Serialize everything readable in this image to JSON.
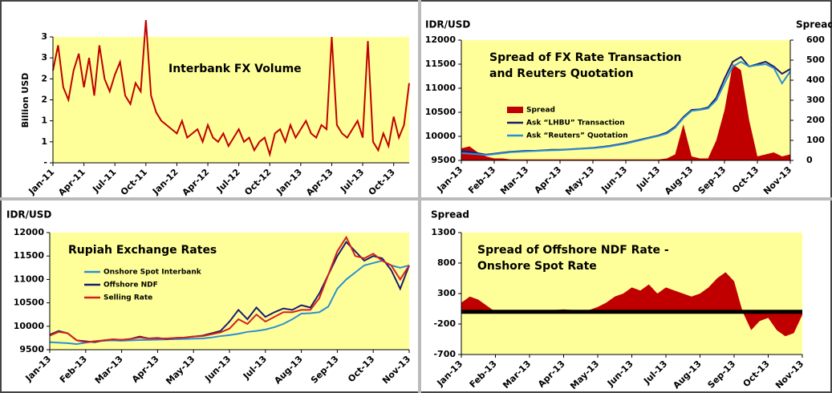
{
  "chart_data": [
    {
      "type": "line",
      "title": [
        "Interbank FX Volume"
      ],
      "ylabel": "Billion USD",
      "categories": [
        "Jan-11",
        null,
        null,
        null,
        null,
        null,
        "Apr-11",
        null,
        null,
        null,
        null,
        null,
        "Jul-11",
        null,
        null,
        null,
        null,
        null,
        "Oct-11",
        null,
        null,
        null,
        null,
        null,
        "Jan-12",
        null,
        null,
        null,
        null,
        null,
        "Apr-12",
        null,
        null,
        null,
        null,
        null,
        "Jul-12",
        null,
        null,
        null,
        null,
        null,
        "Oct-12",
        null,
        null,
        null,
        null,
        null,
        "Jan-13",
        null,
        null,
        null,
        null,
        null,
        "Apr-13",
        null,
        null,
        null,
        null,
        null,
        "Jul-13",
        null,
        null,
        null,
        null,
        null,
        "Oct-13",
        null,
        null,
        null
      ],
      "series": [
        {
          "color": "#c00000",
          "values": [
            2.2,
            2.8,
            1.8,
            1.5,
            2.2,
            2.6,
            1.8,
            2.5,
            1.6,
            2.8,
            2.0,
            1.7,
            2.1,
            2.4,
            1.6,
            1.4,
            1.9,
            1.7,
            3.4,
            1.6,
            1.2,
            1.0,
            0.9,
            0.8,
            0.7,
            1.0,
            0.6,
            0.7,
            0.8,
            0.5,
            0.9,
            0.6,
            0.5,
            0.7,
            0.4,
            0.6,
            0.8,
            0.5,
            0.6,
            0.3,
            0.5,
            0.6,
            0.2,
            0.7,
            0.8,
            0.5,
            0.9,
            0.6,
            0.8,
            1.0,
            0.7,
            0.6,
            0.9,
            0.8,
            3.0,
            0.9,
            0.7,
            0.6,
            0.8,
            1.0,
            0.6,
            2.9,
            0.5,
            0.3,
            0.7,
            0.4,
            1.1,
            0.6,
            0.9,
            1.9
          ]
        }
      ],
      "ylim": [
        0,
        3
      ],
      "yticks": [
        {
          "value": 0,
          "label": "-"
        },
        {
          "value": 0.5,
          "label": "1"
        },
        1,
        {
          "value": 1.5,
          "label": "2"
        },
        2,
        {
          "value": 2.5,
          "label": "3"
        },
        3
      ]
    },
    {
      "type": "line",
      "title": [
        "Spread of FX Rate Transaction",
        "and Reuters Quotation"
      ],
      "ylabel": "IDR/USD",
      "y2label": "Spread",
      "categories": [
        "Jan-13",
        null,
        null,
        null,
        "Feb-13",
        null,
        null,
        null,
        "Mar-13",
        null,
        null,
        null,
        "Apr-13",
        null,
        null,
        null,
        "May-13",
        null,
        null,
        null,
        "Jun-13",
        null,
        null,
        null,
        "Jul-13",
        null,
        null,
        null,
        "Aug-13",
        null,
        null,
        null,
        "Sep-13",
        null,
        null,
        null,
        "Oct-13",
        null,
        null,
        null,
        "Nov-13"
      ],
      "series": [
        {
          "name": "Spread",
          "color": "#c00000",
          "style": "area",
          "axis": "y2",
          "values": [
            60,
            70,
            40,
            20,
            10,
            10,
            5,
            5,
            5,
            5,
            5,
            5,
            5,
            5,
            5,
            5,
            5,
            5,
            5,
            5,
            5,
            5,
            5,
            5,
            5,
            10,
            30,
            180,
            20,
            10,
            10,
            100,
            250,
            480,
            450,
            200,
            20,
            30,
            40,
            20,
            30
          ]
        },
        {
          "name": "Ask  “LHBU” Transaction",
          "color": "#1c1c6e",
          "values": [
            9700,
            9680,
            9650,
            9620,
            9640,
            9660,
            9680,
            9690,
            9700,
            9700,
            9710,
            9720,
            9720,
            9730,
            9740,
            9750,
            9760,
            9780,
            9800,
            9830,
            9860,
            9900,
            9940,
            9980,
            10020,
            10080,
            10200,
            10400,
            10550,
            10560,
            10600,
            10800,
            11200,
            11550,
            11650,
            11450,
            11500,
            11550,
            11450,
            11300,
            11400
          ]
        },
        {
          "name": "Ask  “Reuters” Quotation",
          "color": "#2b8fd4",
          "values": [
            9650,
            9640,
            9630,
            9610,
            9630,
            9650,
            9670,
            9680,
            9690,
            9695,
            9705,
            9710,
            9715,
            9725,
            9735,
            9745,
            9755,
            9770,
            9790,
            9820,
            9850,
            9890,
            9930,
            9970,
            10010,
            10060,
            10180,
            10380,
            10530,
            10550,
            10580,
            10750,
            11100,
            11450,
            11550,
            11450,
            11480,
            11500,
            11420,
            11100,
            11350
          ]
        }
      ],
      "ylim": [
        9500,
        12000
      ],
      "yticks": [
        9500,
        10000,
        10500,
        11000,
        11500,
        12000
      ],
      "y2lim": [
        0,
        600
      ],
      "y2ticks": [
        0,
        100,
        200,
        300,
        400,
        500,
        600
      ]
    },
    {
      "type": "line",
      "title": [
        "Rupiah Exchange Rates"
      ],
      "ylabel": "IDR/USD",
      "categories": [
        "Jan-13",
        null,
        null,
        null,
        "Feb-13",
        null,
        null,
        null,
        "Mar-13",
        null,
        null,
        null,
        "Apr-13",
        null,
        null,
        null,
        "May-13",
        null,
        null,
        null,
        "Jun-13",
        null,
        null,
        null,
        "Jul-13",
        null,
        null,
        null,
        "Aug-13",
        null,
        null,
        null,
        "Sep-13",
        null,
        null,
        null,
        "Oct-13",
        null,
        null,
        null,
        "Nov-13"
      ],
      "series": [
        {
          "name": "Onshore Spot Interbank",
          "color": "#2b8fd4",
          "values": [
            9660,
            9650,
            9640,
            9620,
            9650,
            9680,
            9690,
            9700,
            9690,
            9700,
            9705,
            9710,
            9715,
            9720,
            9725,
            9730,
            9735,
            9740,
            9760,
            9790,
            9810,
            9840,
            9880,
            9900,
            9930,
            9980,
            10050,
            10150,
            10270,
            10280,
            10300,
            10420,
            10800,
            11000,
            11150,
            11300,
            11350,
            11400,
            11300,
            11250,
            11300
          ]
        },
        {
          "name": "Offshore NDF",
          "color": "#1c1c6e",
          "values": [
            9820,
            9900,
            9850,
            9700,
            9680,
            9660,
            9700,
            9720,
            9710,
            9730,
            9780,
            9740,
            9750,
            9730,
            9750,
            9760,
            9780,
            9800,
            9850,
            9900,
            10100,
            10350,
            10150,
            10400,
            10200,
            10300,
            10380,
            10350,
            10450,
            10400,
            10700,
            11100,
            11500,
            11800,
            11600,
            11400,
            11500,
            11450,
            11200,
            10800,
            11300
          ]
        },
        {
          "name": "Selling Rate",
          "color": "#d42020",
          "values": [
            9800,
            9880,
            9850,
            9700,
            9660,
            9680,
            9700,
            9720,
            9710,
            9730,
            9760,
            9740,
            9740,
            9740,
            9750,
            9760,
            9780,
            9790,
            9830,
            9870,
            9950,
            10150,
            10050,
            10250,
            10100,
            10200,
            10300,
            10300,
            10350,
            10350,
            10600,
            11100,
            11600,
            11900,
            11500,
            11450,
            11550,
            11400,
            11300,
            11000,
            11300
          ]
        }
      ],
      "ylim": [
        9500,
        12000
      ],
      "yticks": [
        9500,
        10000,
        10500,
        11000,
        11500,
        12000
      ]
    },
    {
      "type": "area",
      "title": [
        "Spread of Offshore NDF Rate  -",
        "Onshore Spot Rate"
      ],
      "ylabel": "Spread",
      "categories": [
        "Jan-13",
        null,
        null,
        null,
        "Feb-13",
        null,
        null,
        null,
        "Mar-13",
        null,
        null,
        null,
        "Apr-13",
        null,
        null,
        null,
        "May-13",
        null,
        null,
        null,
        "Jun-13",
        null,
        null,
        null,
        "Jul-13",
        null,
        null,
        null,
        "Aug-13",
        null,
        null,
        null,
        "Sep-13",
        null,
        null,
        null,
        "Oct-13",
        null,
        null,
        null,
        "Nov-13"
      ],
      "series": [
        {
          "color": "#c00000",
          "values": [
            150,
            250,
            200,
            100,
            0,
            0,
            0,
            10,
            20,
            10,
            20,
            30,
            40,
            30,
            20,
            30,
            80,
            150,
            250,
            300,
            400,
            350,
            450,
            300,
            400,
            350,
            300,
            250,
            300,
            400,
            550,
            650,
            500,
            0,
            -300,
            -150,
            -100,
            -300,
            -400,
            -350,
            -50
          ]
        }
      ],
      "ylim": [
        -700,
        1300
      ],
      "yticks": [
        -700,
        -200,
        300,
        800,
        1300
      ]
    }
  ]
}
